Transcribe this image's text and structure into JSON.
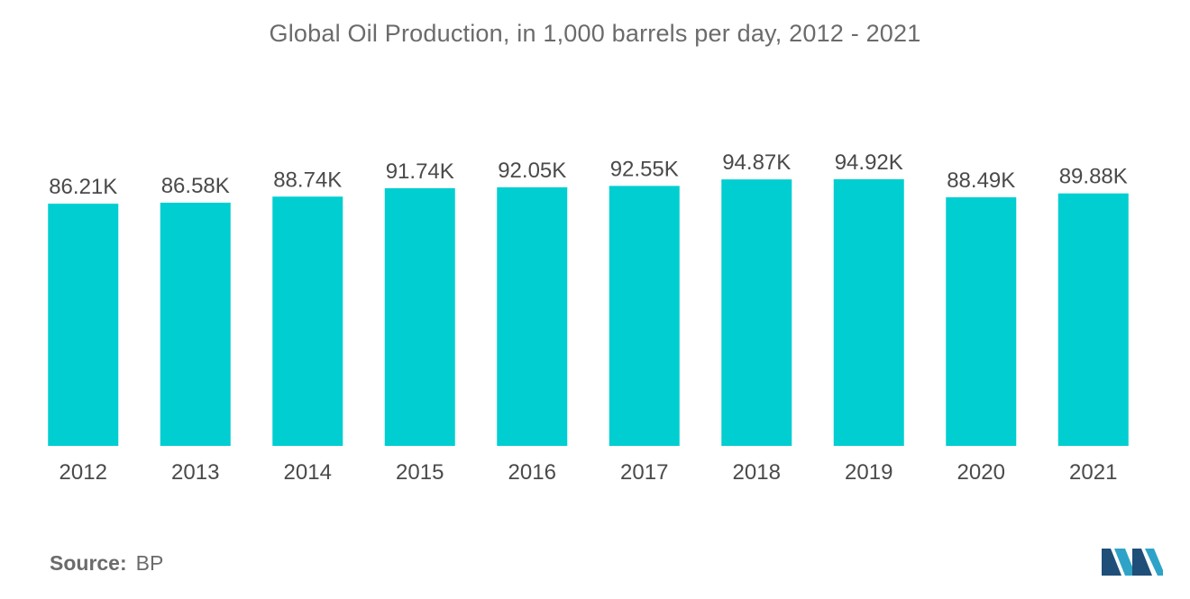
{
  "chart_data": {
    "type": "bar",
    "title": "Global Oil Production, in 1,000 barrels per day, 2012 - 2021",
    "categories": [
      "2012",
      "2013",
      "2014",
      "2015",
      "2016",
      "2017",
      "2018",
      "2019",
      "2020",
      "2021"
    ],
    "values": [
      86.21,
      86.58,
      88.74,
      91.74,
      92.05,
      92.55,
      94.87,
      94.92,
      88.49,
      89.88
    ],
    "value_labels": [
      "86.21K",
      "86.58K",
      "88.74K",
      "91.74K",
      "92.05K",
      "92.55K",
      "94.87K",
      "94.92K",
      "88.49K",
      "89.88K"
    ],
    "xlabel": "",
    "ylabel": "",
    "ylim": [
      0,
      94.92
    ],
    "grid": false,
    "legend": "none",
    "bar_color": "#00ced1"
  },
  "footer": {
    "source_label": "Source:",
    "source_value": "BP"
  },
  "colors": {
    "logo_dark": "#1f4e79",
    "logo_light": "#2ea3c7"
  }
}
